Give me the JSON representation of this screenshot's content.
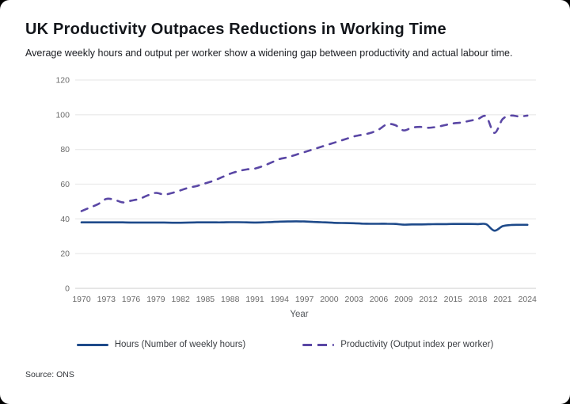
{
  "header": {
    "title": "UK Productivity Outpaces Reductions in Working Time",
    "subtitle": "Average weekly hours and output per worker show a widening gap between productivity and actual labour time."
  },
  "footer": {
    "source": "Source: ONS"
  },
  "colors": {
    "hours_line": "#1e4a8a",
    "productivity_line": "#5a47a5",
    "grid": "#ebebeb",
    "axis_zero": "#d6d6d6",
    "tick_text": "#6a6a6a",
    "card_background": "#ffffff",
    "page_background": "#000000"
  },
  "legend": [
    {
      "label": "Hours (Number of weekly hours)",
      "color": "#1e4a8a",
      "style": "solid"
    },
    {
      "label": "Productivity (Output index per worker)",
      "color": "#5a47a5",
      "style": "dashed"
    }
  ],
  "chart_data": {
    "type": "line",
    "title": "UK Productivity Outpaces Reductions in Working Time",
    "subtitle": "Average weekly hours and output per worker show a widening gap between productivity and actual labour time.",
    "xlabel": "Year",
    "ylabel": "",
    "ylim": [
      0,
      120
    ],
    "yticks": [
      0,
      20,
      40,
      60,
      80,
      100,
      120
    ],
    "xticks": [
      1970,
      1973,
      1976,
      1979,
      1982,
      1985,
      1988,
      1991,
      1994,
      1997,
      2000,
      2003,
      2006,
      2009,
      2012,
      2015,
      2018,
      2021,
      2024
    ],
    "grid": true,
    "legend_position": "bottom",
    "source": "Source: ONS",
    "x": [
      1970,
      1971,
      1972,
      1973,
      1974,
      1975,
      1976,
      1977,
      1978,
      1979,
      1980,
      1981,
      1982,
      1983,
      1984,
      1985,
      1986,
      1987,
      1988,
      1989,
      1990,
      1991,
      1992,
      1993,
      1994,
      1995,
      1996,
      1997,
      1998,
      1999,
      2000,
      2001,
      2002,
      2003,
      2004,
      2005,
      2006,
      2007,
      2008,
      2009,
      2010,
      2011,
      2012,
      2013,
      2014,
      2015,
      2016,
      2017,
      2018,
      2019,
      2020,
      2021,
      2022,
      2023,
      2024
    ],
    "series": [
      {
        "name": "Hours (Number of weekly hours)",
        "color": "#1e4a8a",
        "dash": "solid",
        "values": [
          38,
          38,
          38,
          38,
          38,
          38,
          37.9,
          37.9,
          37.9,
          37.9,
          37.9,
          37.8,
          37.8,
          37.9,
          38,
          38,
          38,
          38,
          38.1,
          38.1,
          38,
          37.9,
          38,
          38.2,
          38.4,
          38.5,
          38.6,
          38.5,
          38.3,
          38.1,
          37.9,
          37.7,
          37.6,
          37.5,
          37.3,
          37.2,
          37.2,
          37.2,
          37.1,
          36.7,
          36.8,
          36.8,
          36.9,
          37,
          37,
          37.1,
          37.1,
          37.1,
          37,
          36.9,
          33.2,
          35.8,
          36.5,
          36.6,
          36.6
        ]
      },
      {
        "name": "Productivity (Output index per worker)",
        "color": "#5a47a5",
        "dash": "dashed",
        "values": [
          44.5,
          46.5,
          48.5,
          51.5,
          51,
          49.5,
          50.5,
          51.5,
          53.5,
          55,
          54,
          55,
          56.5,
          58,
          59,
          60.5,
          62,
          64,
          66,
          67.5,
          68.5,
          69,
          70.5,
          72.5,
          74.5,
          75.5,
          77,
          78.5,
          80,
          81.5,
          83,
          84.5,
          86,
          87.5,
          88.5,
          89.5,
          91.5,
          94.5,
          94,
          91,
          92.5,
          93,
          92.5,
          93,
          94,
          95,
          95.5,
          96.5,
          97.5,
          99,
          89.5,
          97.5,
          99.5,
          99,
          99.5
        ]
      }
    ]
  }
}
